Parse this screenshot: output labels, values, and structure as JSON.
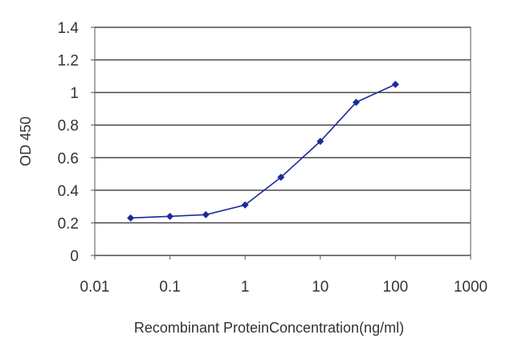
{
  "chart_data": {
    "type": "line",
    "title": "",
    "xlabel": "Recombinant ProteinConcentration(ng/ml)",
    "ylabel": "OD 450",
    "x_scale": "log",
    "xlim": [
      0.01,
      1000
    ],
    "ylim": [
      0,
      1.4
    ],
    "x_ticks": [
      "0.01",
      "0.1",
      "1",
      "10",
      "100",
      "1000"
    ],
    "y_ticks": [
      "0",
      "0.2",
      "0.4",
      "0.6",
      "0.8",
      "1",
      "1.2",
      "1.4"
    ],
    "grid": "horizontal",
    "legend": "none",
    "series": [
      {
        "x": [
          0.03,
          0.1,
          0.3,
          1,
          3,
          10,
          30,
          100
        ],
        "y": [
          0.23,
          0.24,
          0.25,
          0.31,
          0.48,
          0.7,
          0.94,
          1.05
        ],
        "color": "#1a2a9c"
      }
    ]
  }
}
